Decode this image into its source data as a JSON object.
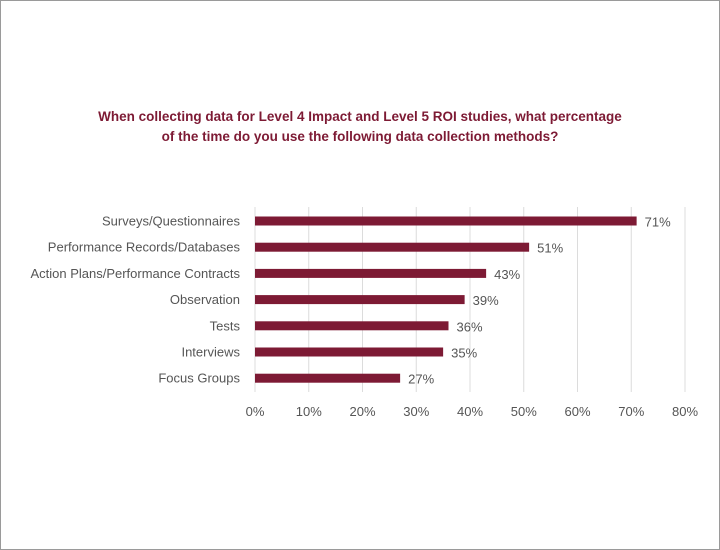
{
  "chart_data": {
    "type": "bar",
    "orientation": "horizontal",
    "title_line1": "When collecting data for Level 4 Impact and Level 5 ROI studies, what percentage",
    "title_line2": "of the time do you use the following data collection methods?",
    "categories": [
      "Surveys/Questionnaires",
      "Performance Records/Databases",
      "Action Plans/Performance Contracts",
      "Observation",
      "Tests",
      "Interviews",
      "Focus Groups"
    ],
    "values": [
      71,
      51,
      43,
      39,
      36,
      35,
      27
    ],
    "value_labels": [
      "71%",
      "51%",
      "43%",
      "39%",
      "36%",
      "35%",
      "27%"
    ],
    "xlim": [
      0,
      80
    ],
    "x_ticks": [
      0,
      10,
      20,
      30,
      40,
      50,
      60,
      70,
      80
    ],
    "x_tick_labels": [
      "0%",
      "10%",
      "20%",
      "30%",
      "40%",
      "50%",
      "60%",
      "70%",
      "80%"
    ],
    "grid": true,
    "bar_color": "#7d1a34",
    "title_color": "#7d1a34"
  }
}
